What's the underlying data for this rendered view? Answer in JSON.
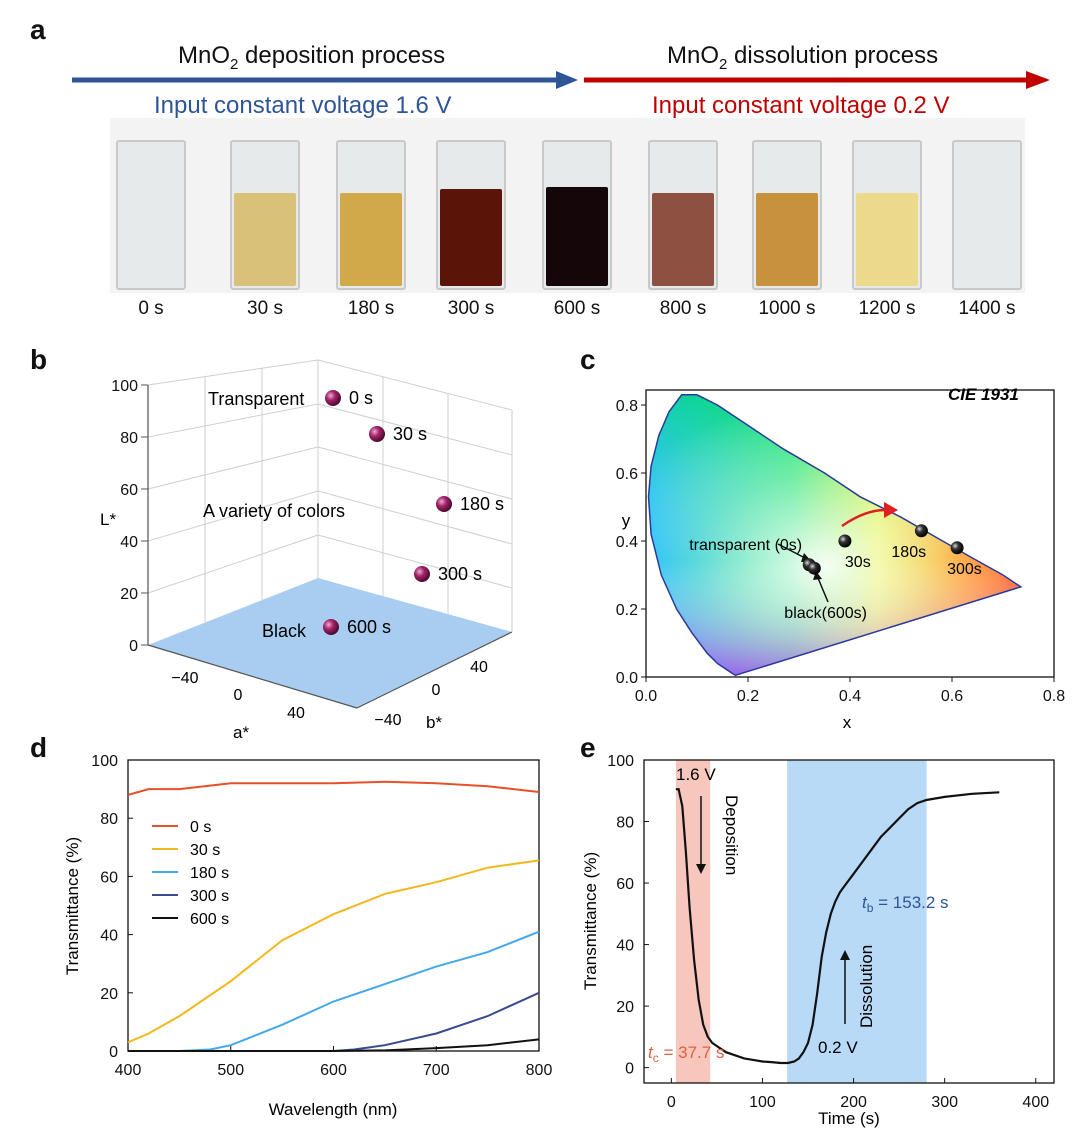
{
  "panel_a": {
    "label": "a",
    "deposition_title_pre": "MnO",
    "deposition_title_sub": "2",
    "deposition_title_post": " deposition process",
    "dissolution_title_pre": "MnO",
    "dissolution_title_sub": "2",
    "dissolution_title_post": " dissolution process",
    "deposition_voltage": "Input constant voltage 1.6 V",
    "dissolution_voltage": "Input constant voltage 0.2 V",
    "deposition_color": "#2e5597",
    "dissolution_color": "#c00000",
    "cuvettes": [
      {
        "time": "0 s",
        "color": "#e4e8e8",
        "fill": 0.0
      },
      {
        "time": "30 s",
        "color": "#d9c17a",
        "fill": 0.62
      },
      {
        "time": "180 s",
        "color": "#d2a94a",
        "fill": 0.62
      },
      {
        "time": "300 s",
        "color": "#5a1408",
        "fill": 0.65
      },
      {
        "time": "600 s",
        "color": "#140609",
        "fill": 0.66
      },
      {
        "time": "800 s",
        "color": "#8e5040",
        "fill": 0.62
      },
      {
        "time": "1000 s",
        "color": "#c8913e",
        "fill": 0.62
      },
      {
        "time": "1200 s",
        "color": "#ecd98c",
        "fill": 0.62
      },
      {
        "time": "1400 s",
        "color": "#e4e8e8",
        "fill": 0.0
      }
    ]
  },
  "panel_b": {
    "label": "b",
    "axis_labels": {
      "l": "L*",
      "a": "a*",
      "b": "b*"
    },
    "l_ticks": [
      "0",
      "20",
      "40",
      "60",
      "80",
      "100"
    ],
    "a_ticks": [
      "−40",
      "0",
      "40"
    ],
    "b_ticks": [
      "−40",
      "0",
      "40"
    ],
    "region_labels": {
      "transparent": "Transparent",
      "variety": "A variety of colors",
      "black": "Black"
    },
    "points": [
      {
        "label": "0 s"
      },
      {
        "label": "30 s"
      },
      {
        "label": "180 s"
      },
      {
        "label": "300 s"
      },
      {
        "label": "600 s"
      }
    ],
    "point_color": "#8a1a5a",
    "floor_color": "#a9cdf0"
  },
  "panel_c": {
    "label": "c",
    "title": "CIE 1931",
    "xlabel": "x",
    "ylabel": "y",
    "x_ticks": [
      "0.0",
      "0.2",
      "0.4",
      "0.6",
      "0.8"
    ],
    "y_ticks": [
      "0.0",
      "0.2",
      "0.4",
      "0.6",
      "0.8"
    ],
    "points": [
      {
        "label": "transparent (0s)",
        "x": 0.32,
        "y": 0.33
      },
      {
        "label": "black(600s)",
        "x": 0.33,
        "y": 0.32
      },
      {
        "label": "30s",
        "x": 0.39,
        "y": 0.4
      },
      {
        "label": "180s",
        "x": 0.54,
        "y": 0.43
      },
      {
        "label": "300s",
        "x": 0.61,
        "y": 0.38
      }
    ]
  },
  "chart_data": [
    {
      "type": "line",
      "panel": "d",
      "label": "d",
      "title": "",
      "xlabel": "Wavelength (nm)",
      "ylabel": "Transmittance (%)",
      "xlim": [
        400,
        800
      ],
      "ylim": [
        0,
        100
      ],
      "x_ticks": [
        "400",
        "500",
        "600",
        "700",
        "800"
      ],
      "y_ticks": [
        "0",
        "20",
        "40",
        "60",
        "80",
        "100"
      ],
      "series": [
        {
          "name": "0 s",
          "color": "#e8502a",
          "x": [
            400,
            420,
            450,
            500,
            550,
            600,
            650,
            700,
            750,
            800
          ],
          "y": [
            88,
            90,
            90,
            92,
            92,
            92,
            92.5,
            92,
            91,
            89
          ]
        },
        {
          "name": "30 s",
          "color": "#f2b81e",
          "x": [
            400,
            420,
            450,
            500,
            550,
            600,
            650,
            700,
            750,
            800
          ],
          "y": [
            3,
            6,
            12,
            24,
            38,
            47,
            54,
            58,
            63,
            65.5
          ]
        },
        {
          "name": "180 s",
          "color": "#43a9e8",
          "x": [
            400,
            450,
            480,
            500,
            550,
            600,
            650,
            700,
            750,
            800
          ],
          "y": [
            0,
            0,
            0.5,
            2,
            9,
            17,
            23,
            29,
            34,
            41
          ]
        },
        {
          "name": "300 s",
          "color": "#3a4a8f",
          "x": [
            400,
            500,
            550,
            600,
            620,
            650,
            700,
            750,
            800
          ],
          "y": [
            0,
            0,
            0,
            0,
            0.5,
            2,
            6,
            12,
            20
          ]
        },
        {
          "name": "600 s",
          "color": "#111111",
          "x": [
            400,
            500,
            600,
            650,
            700,
            750,
            800
          ],
          "y": [
            0,
            0,
            0,
            0.2,
            1,
            2,
            4
          ]
        }
      ]
    },
    {
      "type": "line",
      "panel": "e",
      "label": "e",
      "title": "",
      "xlabel": "Time (s)",
      "ylabel": "Transmittance (%)",
      "xlim": [
        -30,
        420
      ],
      "ylim": [
        -5,
        100
      ],
      "x_ticks": [
        "0",
        "100",
        "200",
        "300",
        "400"
      ],
      "y_ticks": [
        "0",
        "20",
        "40",
        "60",
        "80",
        "100"
      ],
      "series": [
        {
          "name": "Transmittance",
          "color": "#111111",
          "x": [
            5,
            8,
            12,
            16,
            20,
            25,
            30,
            35,
            40,
            45,
            50,
            60,
            70,
            80,
            90,
            100,
            110,
            120,
            128,
            135,
            140,
            145,
            150,
            155,
            160,
            165,
            170,
            175,
            180,
            185,
            190,
            200,
            210,
            220,
            230,
            240,
            250,
            260,
            270,
            280,
            300,
            330,
            360
          ],
          "y": [
            90.5,
            90.5,
            85,
            70,
            52,
            35,
            22,
            14,
            10,
            8,
            7,
            5,
            4,
            3,
            2.5,
            2,
            1.8,
            1.5,
            1.5,
            2,
            3,
            5,
            8,
            14,
            24,
            36,
            44,
            50,
            54,
            57,
            59,
            63,
            67,
            71,
            75,
            78,
            81,
            84,
            86,
            87,
            88,
            89,
            89.5
          ]
        }
      ],
      "regions": [
        {
          "name": "deposition",
          "x0": 5,
          "x1": 42.7,
          "color": "#f7c7bd"
        },
        {
          "name": "dissolution",
          "x0": 127,
          "x1": 280.2,
          "color": "#b9daf7"
        }
      ],
      "annotations": {
        "deposition_voltage": "1.6 V",
        "deposition_text": "Deposition",
        "dissolution_voltage": "0.2 V",
        "dissolution_text": "Dissolution",
        "tc_var": "t",
        "tc_sub": "c",
        "tc_val": " = 37.7 s",
        "tb_var": "t",
        "tb_sub": "b",
        "tb_val": " = 153.2 s",
        "tc_color": "#e06040",
        "tb_color": "#2e5597"
      }
    }
  ]
}
